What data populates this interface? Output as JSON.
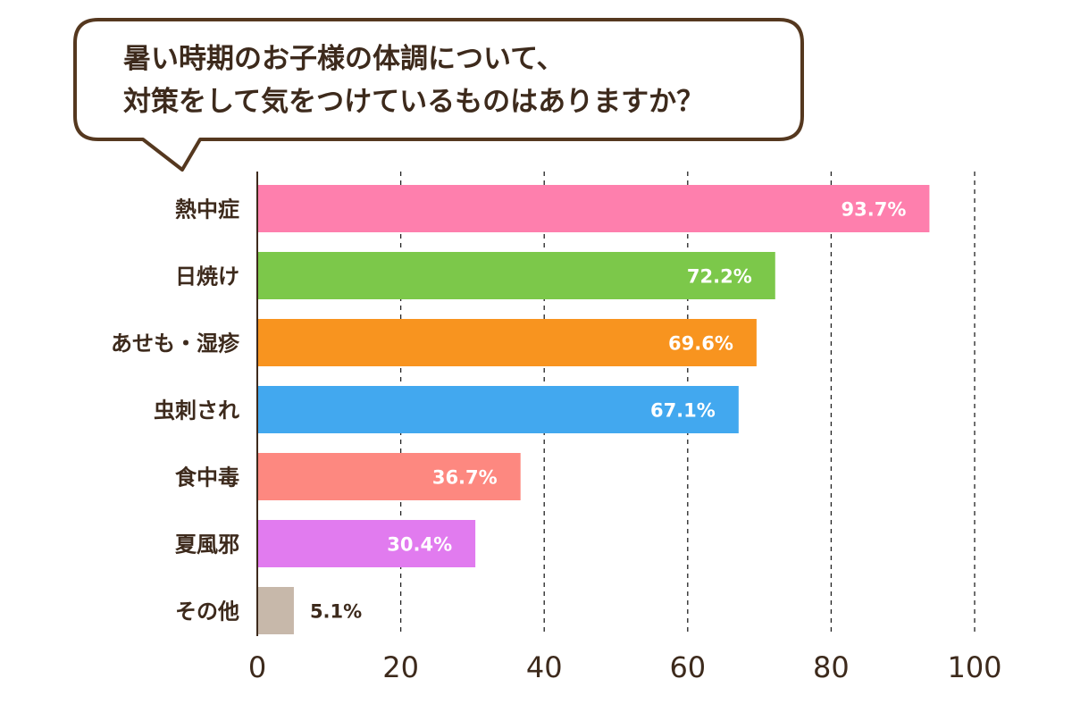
{
  "chart_data": {
    "type": "bar",
    "orientation": "horizontal",
    "title_lines": [
      "暑い時期のお子様の体調について、",
      "対策をして気をつけているものはありますか？"
    ],
    "categories": [
      "熱中症",
      "日焼け",
      "あせも・湿疹",
      "虫刺され",
      "食中毒",
      "夏風邪",
      "その他"
    ],
    "values": [
      93.7,
      72.2,
      69.6,
      67.1,
      36.7,
      30.4,
      5.1
    ],
    "data_labels": [
      "93.7%",
      "72.2%",
      "69.6%",
      "67.1%",
      "36.7%",
      "30.4%",
      "5.1%"
    ],
    "colors": [
      "#fe7fad",
      "#7cc84a",
      "#f8941f",
      "#42a8ef",
      "#fd8880",
      "#e17bef",
      "#c7b8aa"
    ],
    "xlim": [
      0,
      100
    ],
    "x_ticks": [
      0,
      20,
      40,
      60,
      80,
      100
    ],
    "x_tick_labels": [
      "0",
      "20",
      "40",
      "60",
      "80",
      "100"
    ],
    "grid": "vertical-dashed",
    "legend": "none"
  },
  "colors": {
    "text": "#3d2a1c",
    "bubble_border": "#55381f",
    "axis": "#3d2a1c",
    "grid": "#222222",
    "inside_label": "#ffffff",
    "outside_label": "#3d2a1c"
  }
}
